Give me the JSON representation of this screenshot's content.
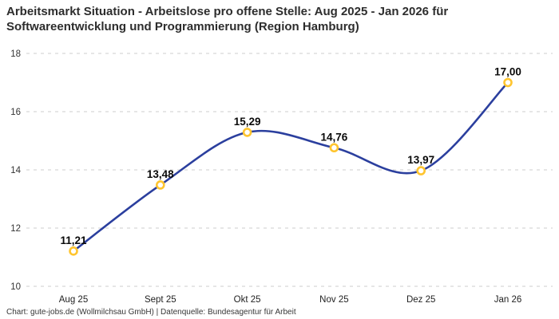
{
  "header": {
    "title_line1": "Arbeitsmarkt Situation - Arbeitslose pro offene Stelle: Aug 2025 - Jan 2026 für",
    "title_line2": "Softwareentwicklung und Programmierung (Region Hamburg)"
  },
  "chart_data": {
    "type": "line",
    "title": "Arbeitsmarkt Situation - Arbeitslose pro offene Stelle: Aug 2025 - Jan 2026 für Softwareentwicklung und Programmierung (Region Hamburg)",
    "categories": [
      "Aug 25",
      "Sept 25",
      "Okt 25",
      "Nov 25",
      "Dez 25",
      "Jan 26"
    ],
    "values": [
      11.21,
      13.48,
      15.29,
      14.76,
      13.97,
      17.0
    ],
    "value_labels": [
      "11,21",
      "13,48",
      "15,29",
      "14,76",
      "13,97",
      "17,00"
    ],
    "xlabel": "",
    "ylabel": "",
    "ylim": [
      10,
      18
    ],
    "yticks": [
      10,
      12,
      14,
      16,
      18
    ],
    "grid": "horizontal-dashed",
    "legend": "none",
    "smooth": true,
    "colors": {
      "line": "#2b3f9e",
      "marker_stroke": "#ffc52f",
      "marker_fill": "#ffffff",
      "grid": "#cccccc",
      "title_text": "#2d2d2d",
      "tick_text": "#333333",
      "data_label_text": "#0a0a0a"
    }
  },
  "footer": {
    "credit": "Chart: gute-jobs.de (Wollmilchsau GmbH) | Datenquelle: Bundesagentur für Arbeit"
  }
}
